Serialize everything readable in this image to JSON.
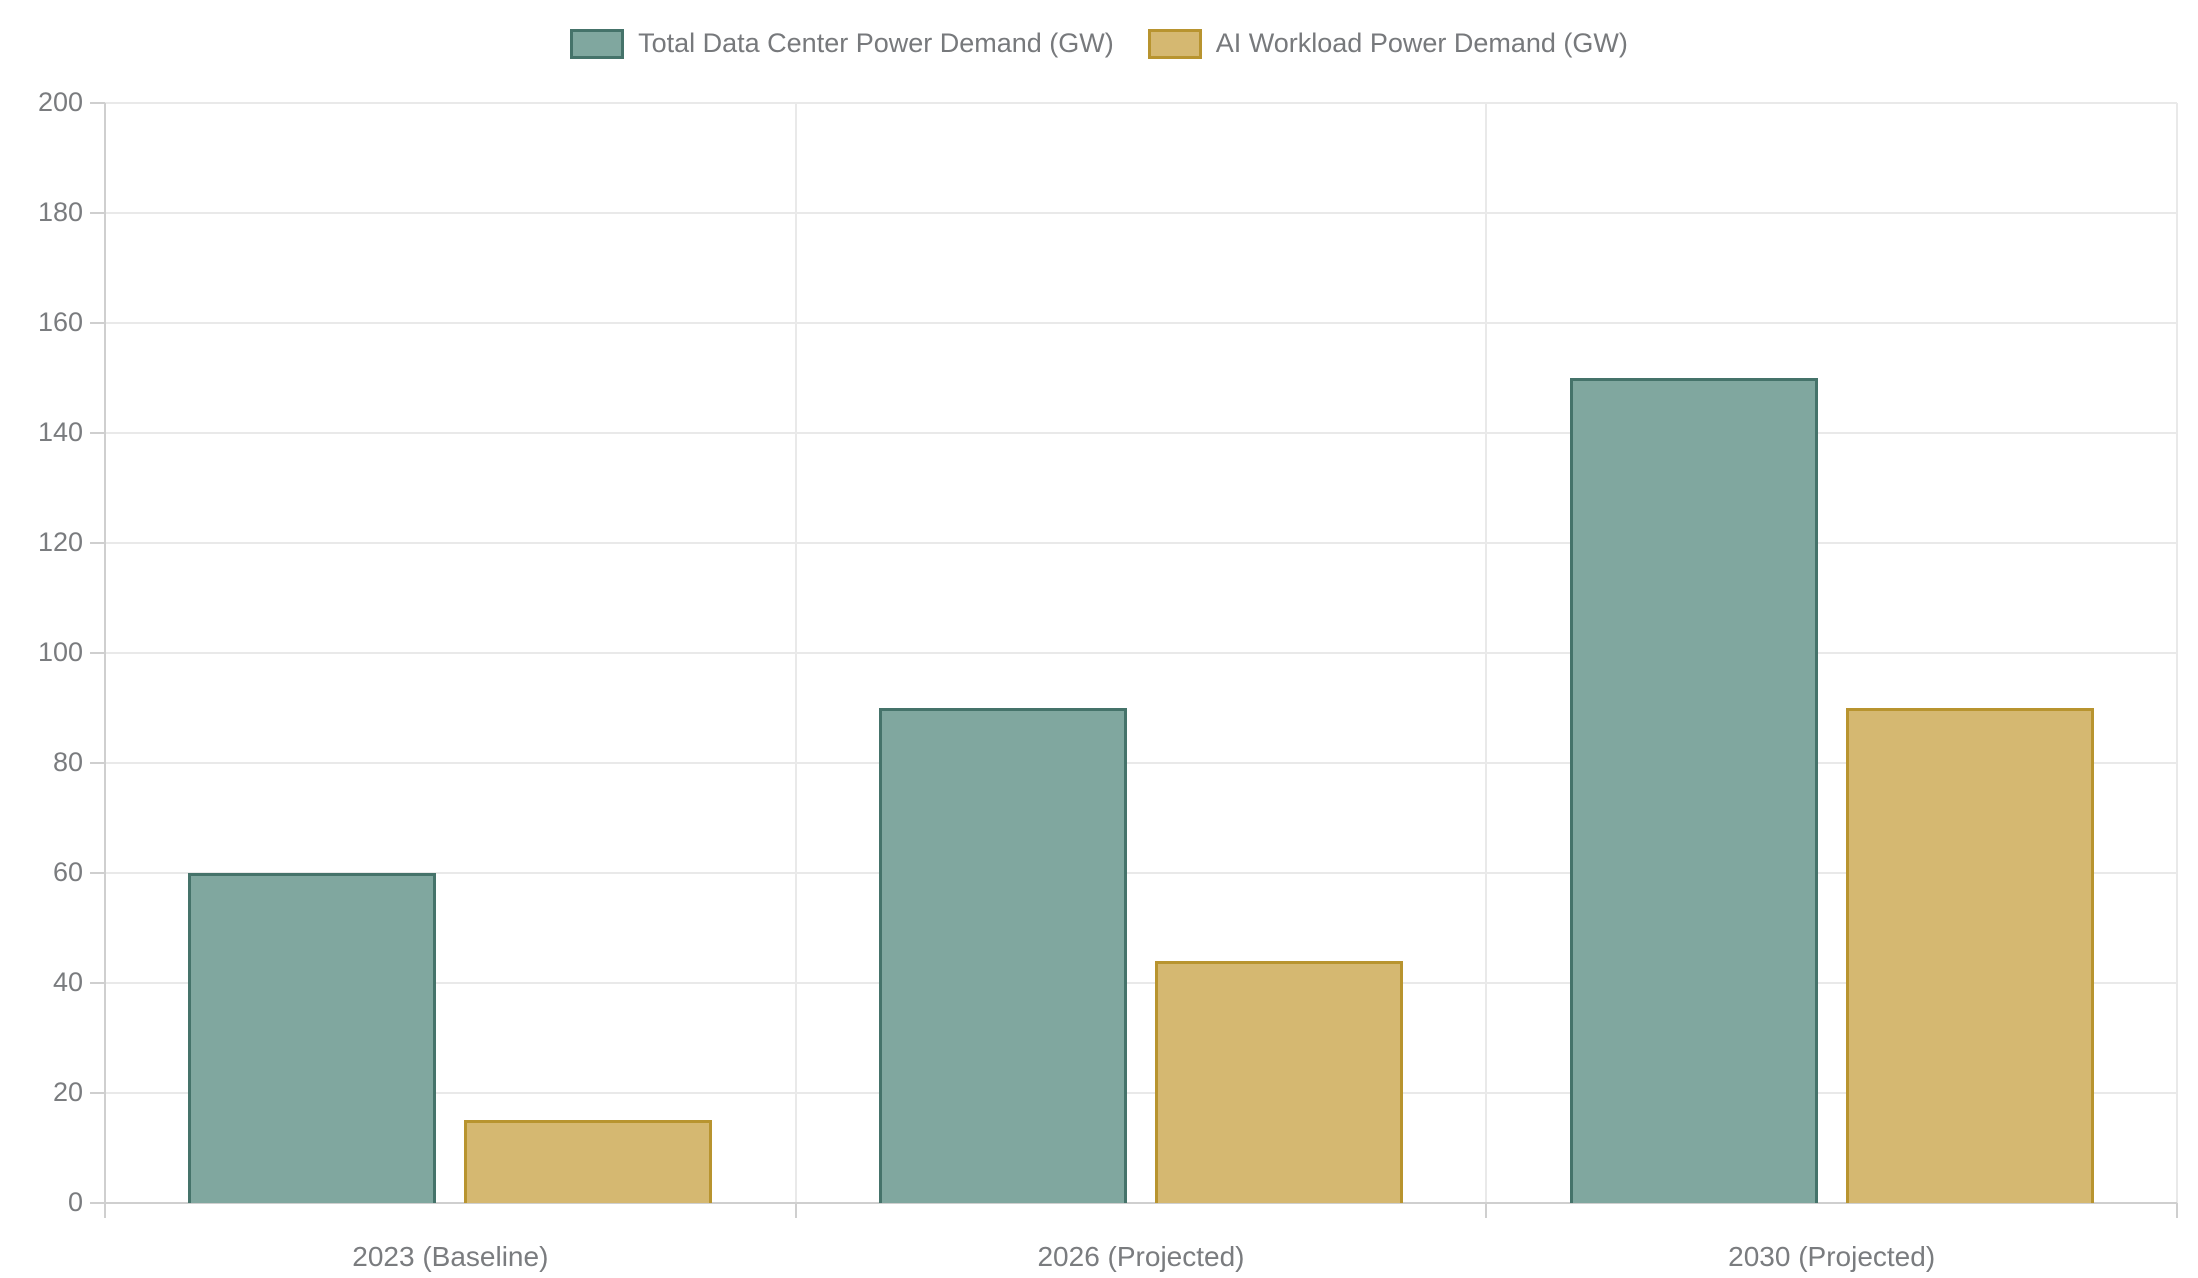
{
  "chart_data": {
    "type": "bar",
    "title": "",
    "categories": [
      "2023 (Baseline)",
      "2026 (Projected)",
      "2030 (Projected)"
    ],
    "category_keys": [
      "2023",
      "2026",
      "2030"
    ],
    "series": [
      {
        "key": "total",
        "name": "Total Data Center Power Demand (GW)",
        "values": [
          60,
          90,
          150
        ],
        "fill": "#80A79F",
        "border": "#45736A"
      },
      {
        "key": "ai",
        "name": "AI Workload Power Demand (GW)",
        "values": [
          15,
          44,
          90
        ],
        "fill": "#D5B871",
        "border": "#B8942F"
      }
    ],
    "ylim": [
      0,
      200
    ],
    "y_ticks": [
      0,
      20,
      40,
      60,
      80,
      100,
      120,
      140,
      160,
      180,
      200
    ],
    "grid": true,
    "legend_position": "top"
  },
  "colors": {
    "background": "#FFFFFF",
    "grid": "#E9E9E9",
    "axis": "#CFCFCF",
    "text": "#77797C"
  }
}
